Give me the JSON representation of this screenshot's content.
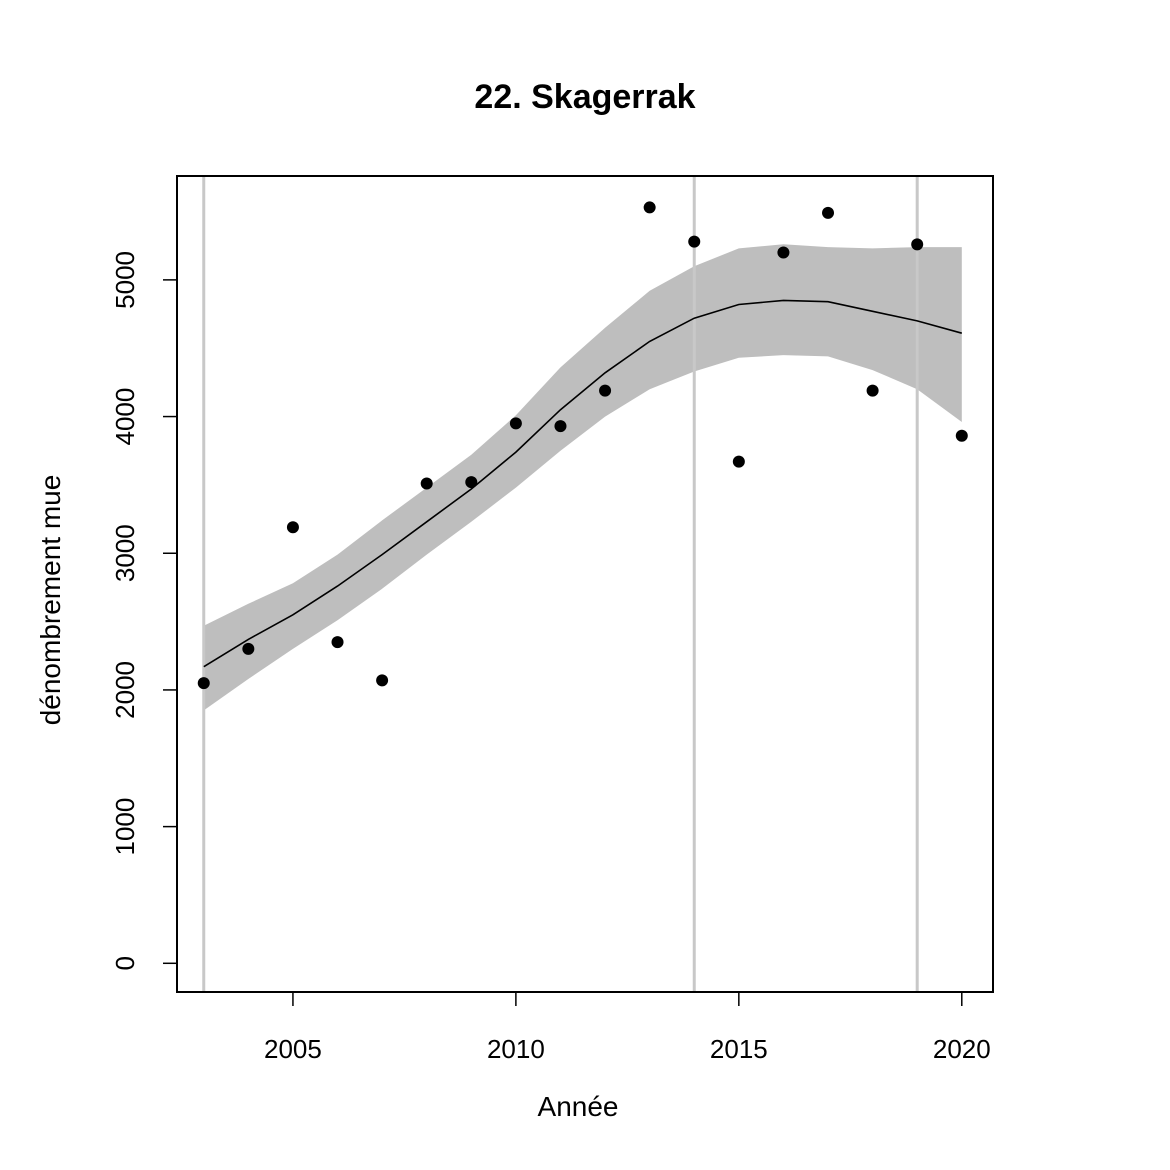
{
  "chart_data": {
    "type": "scatter",
    "title": "22. Skagerrak",
    "xlabel": "Année",
    "ylabel": "dénombrement mue",
    "xlim": [
      2002.4,
      2020.7
    ],
    "ylim": [
      -210,
      5760
    ],
    "x_ticks": [
      2005,
      2010,
      2015,
      2020
    ],
    "y_ticks": [
      0,
      1000,
      2000,
      3000,
      4000,
      5000
    ],
    "x_tick_labels": [
      "2005",
      "2010",
      "2015",
      "2020"
    ],
    "y_tick_labels": [
      "0",
      "1000",
      "2000",
      "3000",
      "4000",
      "5000"
    ],
    "grid": false,
    "vertical_reference_lines": [
      2003,
      2014,
      2019
    ],
    "points": [
      {
        "x": 2003,
        "y": 2050
      },
      {
        "x": 2004,
        "y": 2300
      },
      {
        "x": 2005,
        "y": 3190
      },
      {
        "x": 2006,
        "y": 2350
      },
      {
        "x": 2007,
        "y": 2070
      },
      {
        "x": 2008,
        "y": 3510
      },
      {
        "x": 2009,
        "y": 3520
      },
      {
        "x": 2010,
        "y": 3950
      },
      {
        "x": 2011,
        "y": 3930
      },
      {
        "x": 2012,
        "y": 4190
      },
      {
        "x": 2013,
        "y": 5530
      },
      {
        "x": 2014,
        "y": 5280
      },
      {
        "x": 2015,
        "y": 3670
      },
      {
        "x": 2016,
        "y": 5200
      },
      {
        "x": 2017,
        "y": 5490
      },
      {
        "x": 2018,
        "y": 4190
      },
      {
        "x": 2019,
        "y": 5260
      },
      {
        "x": 2020,
        "y": 3860
      }
    ],
    "trend": {
      "x": [
        2003,
        2004,
        2005,
        2006,
        2007,
        2008,
        2009,
        2010,
        2011,
        2012,
        2013,
        2014,
        2015,
        2016,
        2017,
        2018,
        2019,
        2020
      ],
      "y": [
        2170,
        2370,
        2550,
        2760,
        2990,
        3230,
        3470,
        3740,
        4050,
        4320,
        4550,
        4720,
        4820,
        4850,
        4840,
        4770,
        4700,
        4610
      ],
      "lower": [
        1850,
        2080,
        2300,
        2510,
        2740,
        2990,
        3230,
        3480,
        3750,
        4000,
        4200,
        4330,
        4430,
        4450,
        4440,
        4340,
        4200,
        3960
      ],
      "upper": [
        2470,
        2630,
        2780,
        2990,
        3240,
        3480,
        3720,
        4010,
        4360,
        4650,
        4920,
        5100,
        5230,
        5260,
        5240,
        5230,
        5240,
        5240
      ]
    },
    "colors": {
      "band": "#bebebe",
      "reference_line": "#c8c8c8",
      "trend_line": "#000000",
      "points": "#000000",
      "frame": "#000000"
    }
  }
}
